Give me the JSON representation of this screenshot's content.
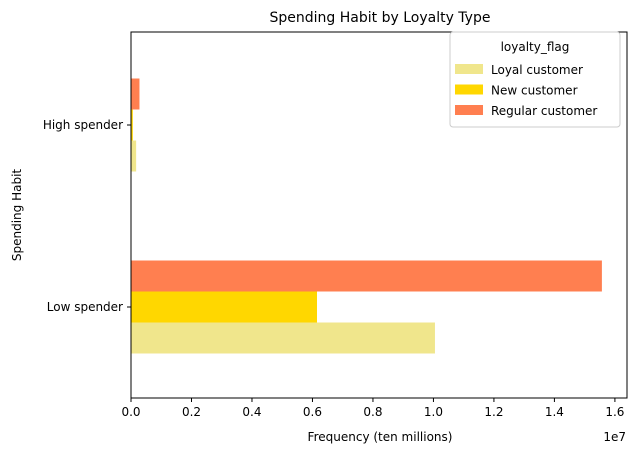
{
  "chart_data": {
    "type": "bar",
    "orientation": "horizontal",
    "title": "Spending Habit by Loyalty Type",
    "xlabel": "Frequency (ten millions)",
    "ylabel": "Spending Habit",
    "x_offset_label": "1e7",
    "categories": [
      "High spender",
      "Low spender"
    ],
    "series": [
      {
        "name": "Loyal customer",
        "color": "#f0e68c",
        "values": [
          170000,
          10050000
        ]
      },
      {
        "name": "New customer",
        "color": "#ffd700",
        "values": [
          60000,
          6150000
        ]
      },
      {
        "name": "Regular customer",
        "color": "#ff7f50",
        "values": [
          280000,
          15570000
        ]
      }
    ],
    "xlim": [
      0,
      16400000
    ],
    "xticks": [
      0,
      2000000,
      4000000,
      6000000,
      8000000,
      10000000,
      12000000,
      14000000,
      16000000
    ],
    "xtick_labels": [
      "0.0",
      "0.2",
      "0.4",
      "0.6",
      "0.8",
      "1.0",
      "1.2",
      "1.4",
      "1.6"
    ],
    "legend": {
      "title": "loyalty_flag",
      "placement": "top-right"
    },
    "grid": false
  }
}
